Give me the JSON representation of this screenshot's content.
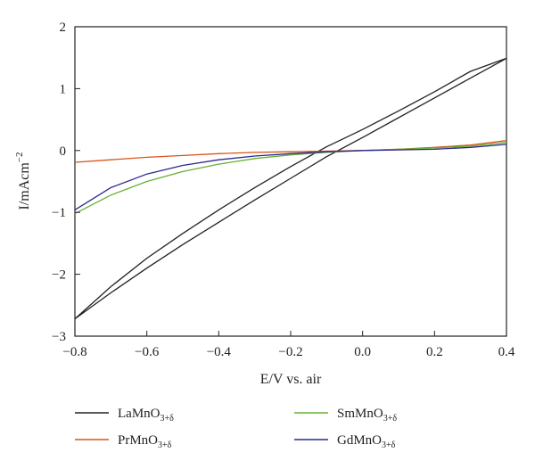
{
  "chart_data": {
    "type": "line",
    "title": "",
    "xlabel": "E/V vs. air",
    "ylabel_main": "I/mAcm",
    "ylabel_sup": "−2",
    "xlim": [
      -0.8,
      0.4
    ],
    "ylim": [
      -3,
      2
    ],
    "xticks": [
      -0.8,
      -0.6,
      -0.4,
      -0.2,
      0.0,
      0.2,
      0.4
    ],
    "xtick_labels": [
      "−0.8",
      "−0.6",
      "−0.4",
      "−0.2",
      "0.0",
      "0.2",
      "0.4"
    ],
    "yticks": [
      -3,
      -2,
      -1,
      0,
      1,
      2
    ],
    "ytick_labels": [
      "−3",
      "−2",
      "−1",
      "0",
      "1",
      "2"
    ],
    "grid": false,
    "legend_position": "bottom",
    "series": [
      {
        "name": "LaMnO",
        "name_sub": "3+δ",
        "color": "#222222",
        "x": [
          -0.8,
          -0.7,
          -0.6,
          -0.5,
          -0.4,
          -0.3,
          -0.2,
          -0.1,
          0.0,
          0.1,
          0.2,
          0.3,
          0.4,
          0.3,
          0.2,
          0.1,
          0.0,
          -0.1,
          -0.2,
          -0.3,
          -0.4,
          -0.5,
          -0.6,
          -0.7,
          -0.8
        ],
        "y": [
          -2.72,
          -2.3,
          -1.9,
          -1.52,
          -1.16,
          -0.8,
          -0.45,
          -0.1,
          0.21,
          0.53,
          0.85,
          1.17,
          1.49,
          1.28,
          0.95,
          0.64,
          0.34,
          0.06,
          -0.26,
          -0.6,
          -0.96,
          -1.34,
          -1.74,
          -2.2,
          -2.72
        ]
      },
      {
        "name": "PrMnO",
        "name_sub": "3+δ",
        "color": "#d95319",
        "x": [
          -0.8,
          -0.7,
          -0.6,
          -0.5,
          -0.4,
          -0.3,
          -0.2,
          -0.1,
          0.0,
          0.1,
          0.2,
          0.3,
          0.4
        ],
        "y": [
          -0.19,
          -0.15,
          -0.11,
          -0.08,
          -0.05,
          -0.03,
          -0.02,
          -0.01,
          0.0,
          0.02,
          0.05,
          0.09,
          0.16
        ]
      },
      {
        "name": "SmMnO",
        "name_sub": "3+δ",
        "color": "#66b032",
        "x": [
          -0.8,
          -0.7,
          -0.6,
          -0.5,
          -0.4,
          -0.3,
          -0.2,
          -0.1,
          0.0,
          0.1,
          0.2,
          0.3,
          0.4
        ],
        "y": [
          -1.02,
          -0.72,
          -0.5,
          -0.34,
          -0.22,
          -0.13,
          -0.07,
          -0.03,
          0.0,
          0.02,
          0.04,
          0.07,
          0.13
        ]
      },
      {
        "name": "GdMnO",
        "name_sub": "3+δ",
        "color": "#2b2a8c",
        "x": [
          -0.8,
          -0.7,
          -0.6,
          -0.5,
          -0.4,
          -0.3,
          -0.2,
          -0.1,
          0.0,
          0.1,
          0.2,
          0.3,
          0.4
        ],
        "y": [
          -0.96,
          -0.6,
          -0.38,
          -0.24,
          -0.15,
          -0.09,
          -0.05,
          -0.02,
          0.0,
          0.01,
          0.02,
          0.05,
          0.1
        ]
      }
    ]
  }
}
